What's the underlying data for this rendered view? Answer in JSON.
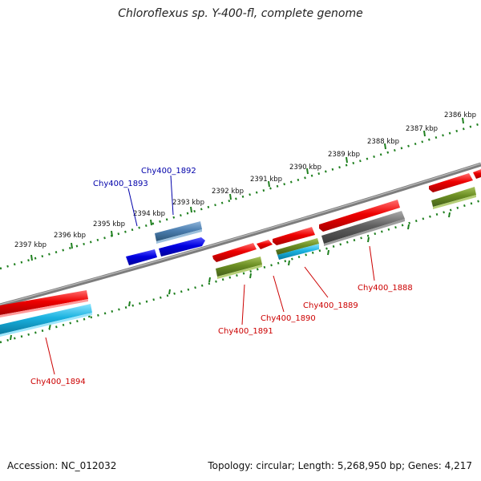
{
  "title": "Chloroflexus sp. Y-400-fl, complete genome",
  "accession": "Accession: NC_012032",
  "summary": "Topology: circular; Length: 5,268,950 bp; Genes: 4,217",
  "colors": {
    "forward_gene": "#ee0000",
    "forward_label": "#cc0000",
    "reverse_blue": "#0000dd",
    "reverse_label": "#0000aa",
    "steel_blue": "#4c7fb0",
    "olive": "#6b8e23",
    "cyan": "#1ab2e0",
    "gray_gene": "#606060",
    "backbone": "#808080",
    "ruler_dots": "#1e7f1e"
  },
  "ticks": [
    "2386 kbp",
    "2387 kbp",
    "2388 kbp",
    "2389 kbp",
    "2390 kbp",
    "2391 kbp",
    "2392 kbp",
    "2393 kbp",
    "2394 kbp",
    "2395 kbp",
    "2396 kbp",
    "2397 kbp"
  ],
  "gene_labels": {
    "g1888": "Chy400_1888",
    "g1889": "Chy400_1889",
    "g1890": "Chy400_1890",
    "g1891": "Chy400_1891",
    "g1892": "Chy400_1892",
    "g1893": "Chy400_1893",
    "g1894": "Chy400_1894"
  }
}
